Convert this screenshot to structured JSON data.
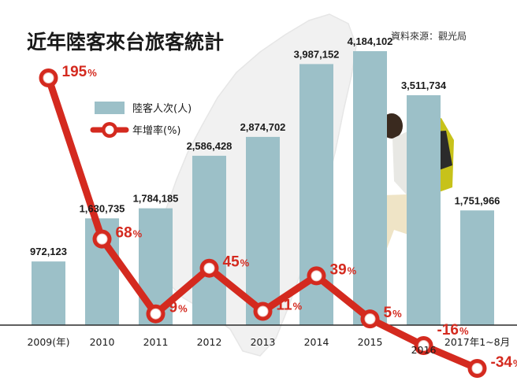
{
  "chart_data": {
    "type": "bar",
    "title": "近年陸客來台旅客統計",
    "source": "資料來源：觀光局",
    "categories": [
      "2009(年)",
      "2010",
      "2011",
      "2012",
      "2013",
      "2014",
      "2015",
      "2016",
      "2017年1~8月"
    ],
    "series": [
      {
        "name": "陸客人次(人)",
        "type": "bar",
        "values": [
          972123,
          1630735,
          1784185,
          2586428,
          2874702,
          3987152,
          4184102,
          3511734,
          1751966
        ],
        "labels": [
          "972,123",
          "1,630,735",
          "1,784,185",
          "2,586,428",
          "2,874,702",
          "3,987,152",
          "4,184,102",
          "3,511,734",
          "1,751,966"
        ],
        "color": "#9cc0c8"
      },
      {
        "name": "年增率(%)",
        "type": "line",
        "values": [
          195,
          68,
          9,
          45,
          11,
          39,
          5,
          -16,
          -34
        ],
        "labels": [
          "195",
          "68",
          "9",
          "45",
          "11",
          "39",
          "5",
          "-16",
          "-34"
        ],
        "unit": "%",
        "color": "#d42a1f"
      }
    ],
    "legend": "top-left"
  }
}
